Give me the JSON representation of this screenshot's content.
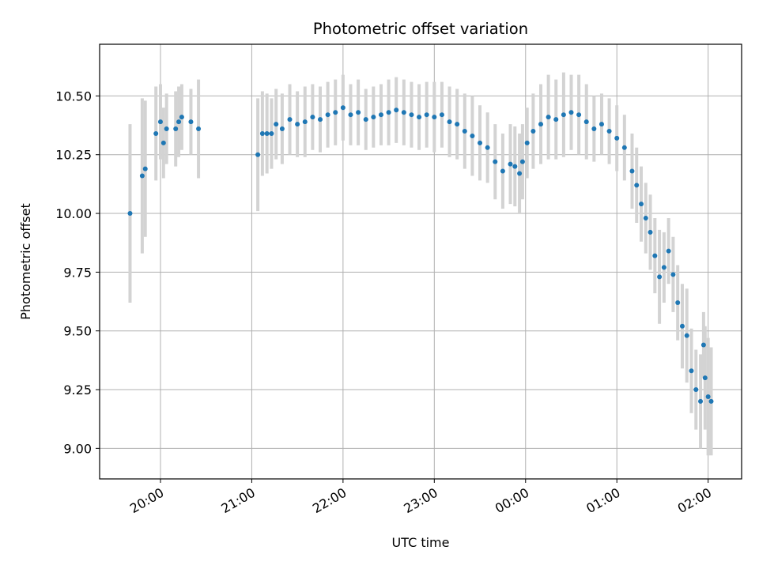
{
  "chart_data": {
    "type": "scatter",
    "title": "Photometric offset variation",
    "xlabel": "UTC time",
    "ylabel": "Photometric offset",
    "x_ticks": [
      "20:00",
      "21:00",
      "22:00",
      "23:00",
      "00:00",
      "01:00",
      "02:00"
    ],
    "y_ticks": [
      "9.00",
      "9.25",
      "9.50",
      "9.75",
      "10.00",
      "10.25",
      "10.50"
    ],
    "xlim": [
      "19:20",
      "02:22"
    ],
    "ylim": [
      8.87,
      10.72
    ],
    "grid": true,
    "legend": "none",
    "colors": {
      "marker": "#1f77b4",
      "errorbar": "#d3d3d3",
      "grid": "#b0b0b0"
    },
    "series": [
      {
        "x": [
          "19:40",
          "19:48",
          "19:50",
          "19:57",
          "20:00",
          "20:02",
          "20:04",
          "20:10",
          "20:12",
          "20:14",
          "20:20",
          "20:25",
          "21:04",
          "21:07",
          "21:10",
          "21:13",
          "21:16",
          "21:20",
          "21:25",
          "21:30",
          "21:35",
          "21:40",
          "21:45",
          "21:50",
          "21:55",
          "22:00",
          "22:05",
          "22:10",
          "22:15",
          "22:20",
          "22:25",
          "22:30",
          "22:35",
          "22:40",
          "22:45",
          "22:50",
          "22:55",
          "23:00",
          "23:05",
          "23:10",
          "23:15",
          "23:20",
          "23:25",
          "23:30",
          "23:35",
          "23:40",
          "23:45",
          "23:50",
          "23:53",
          "23:56",
          "23:58",
          "00:01",
          "00:05",
          "00:10",
          "00:15",
          "00:20",
          "00:25",
          "00:30",
          "00:35",
          "00:40",
          "00:45",
          "00:50",
          "00:55",
          "01:00",
          "01:05",
          "01:10",
          "01:13",
          "01:16",
          "01:19",
          "01:22",
          "01:25",
          "01:28",
          "01:31",
          "01:34",
          "01:37",
          "01:40",
          "01:43",
          "01:46",
          "01:49",
          "01:52",
          "01:55",
          "01:57",
          "01:58",
          "02:00",
          "02:02"
        ],
        "y": [
          10.0,
          10.16,
          10.19,
          10.34,
          10.39,
          10.3,
          10.36,
          10.36,
          10.39,
          10.41,
          10.39,
          10.36,
          10.25,
          10.34,
          10.34,
          10.34,
          10.38,
          10.36,
          10.4,
          10.38,
          10.39,
          10.41,
          10.4,
          10.42,
          10.43,
          10.45,
          10.42,
          10.43,
          10.4,
          10.41,
          10.42,
          10.43,
          10.44,
          10.43,
          10.42,
          10.41,
          10.42,
          10.41,
          10.42,
          10.39,
          10.38,
          10.35,
          10.33,
          10.3,
          10.28,
          10.22,
          10.18,
          10.21,
          10.2,
          10.17,
          10.22,
          10.3,
          10.35,
          10.38,
          10.41,
          10.4,
          10.42,
          10.43,
          10.42,
          10.39,
          10.36,
          10.38,
          10.35,
          10.32,
          10.28,
          10.18,
          10.12,
          10.04,
          9.98,
          9.92,
          9.82,
          9.73,
          9.77,
          9.84,
          9.74,
          9.62,
          9.52,
          9.48,
          9.33,
          9.25,
          9.2,
          9.44,
          9.3,
          9.22,
          9.2
        ],
        "error": [
          0.38,
          0.33,
          0.29,
          0.2,
          0.16,
          0.15,
          0.15,
          0.16,
          0.15,
          0.14,
          0.14,
          0.21,
          0.24,
          0.18,
          0.17,
          0.15,
          0.15,
          0.15,
          0.15,
          0.14,
          0.15,
          0.14,
          0.14,
          0.14,
          0.14,
          0.14,
          0.13,
          0.14,
          0.13,
          0.13,
          0.13,
          0.14,
          0.14,
          0.14,
          0.14,
          0.14,
          0.14,
          0.15,
          0.14,
          0.15,
          0.15,
          0.16,
          0.17,
          0.16,
          0.15,
          0.16,
          0.16,
          0.17,
          0.17,
          0.17,
          0.16,
          0.15,
          0.16,
          0.17,
          0.18,
          0.17,
          0.18,
          0.16,
          0.17,
          0.16,
          0.14,
          0.13,
          0.14,
          0.14,
          0.14,
          0.16,
          0.16,
          0.16,
          0.15,
          0.16,
          0.16,
          0.2,
          0.15,
          0.14,
          0.16,
          0.16,
          0.18,
          0.2,
          0.18,
          0.17,
          0.2,
          0.14,
          0.22,
          0.25,
          0.23
        ]
      }
    ]
  }
}
